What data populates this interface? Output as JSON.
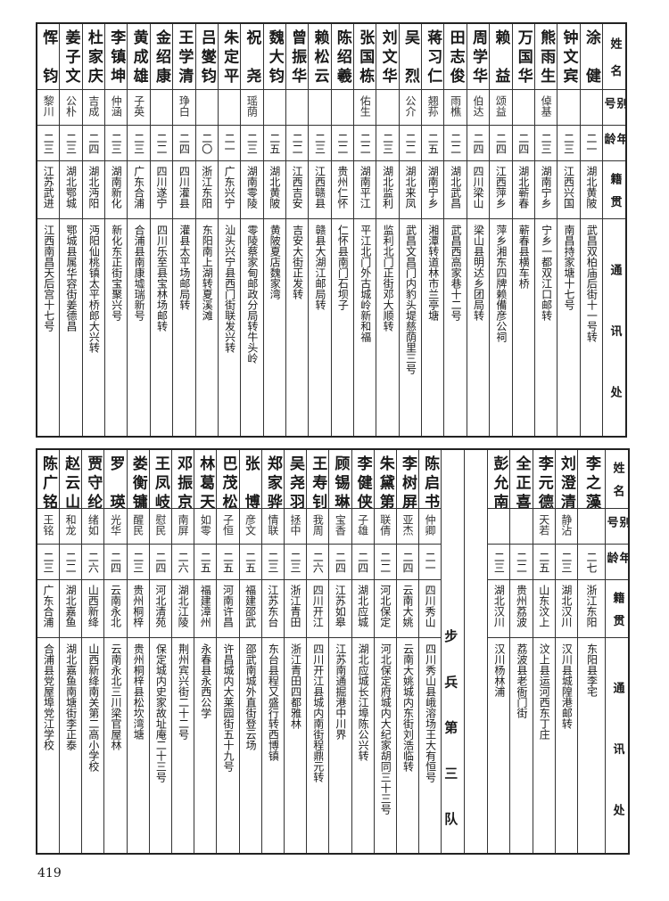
{
  "headers": {
    "name": "姓名",
    "alias": "别号",
    "age": "年龄",
    "native": "籍贯",
    "address": "通讯处"
  },
  "top_table": {
    "people": [
      {
        "name": "涂健",
        "alias": "",
        "age": "二一",
        "native": "湖北黄陂",
        "address": "武昌双柏庙后街十一号转"
      },
      {
        "name": "钟文宾",
        "alias": "",
        "age": "二三",
        "native": "江西兴国",
        "address": "南昌持家塘十七号"
      },
      {
        "name": "熊雨生",
        "alias": "倬基",
        "age": "二三",
        "native": "湖南宁乡",
        "address": "宁乡一都双江口邮转"
      },
      {
        "name": "万国华",
        "alias": "",
        "age": "二四",
        "native": "湖北蕲春",
        "address": "蕲春县横车桥"
      },
      {
        "name": "赖益",
        "alias": "颂益",
        "age": "二四",
        "native": "江西萍乡",
        "address": "萍乡湘东四牌赖備彦公祠"
      },
      {
        "name": "周学华",
        "alias": "伯达",
        "age": "二四",
        "native": "四川梁山",
        "address": "梁山县明达乡团局转"
      },
      {
        "name": "田志俊",
        "alias": "雨樵",
        "age": "二二",
        "native": "湖北武昌",
        "address": "武昌西高家巷十二号"
      },
      {
        "name": "蒋习仁",
        "alias": "翘荪",
        "age": "二五",
        "native": "湖南宁乡",
        "address": "湘潭转道林市兰亭塘"
      },
      {
        "name": "吴烈",
        "alias": "公介",
        "age": "二二",
        "native": "湖北来凤",
        "address": "武昌文昌门内豹头堤慈荫里三号"
      },
      {
        "name": "刘文华",
        "alias": "",
        "age": "二三",
        "native": "湖北监利",
        "address": "监利北门正街邓大顺转"
      },
      {
        "name": "张国栋",
        "alias": "佑生",
        "age": "二二",
        "native": "湖南平江",
        "address": "平江北门外古城岭新和福"
      },
      {
        "name": "陈绍羲",
        "alias": "",
        "age": "二二",
        "native": "贵州仁怀",
        "address": "仁怀县南门石坝子"
      },
      {
        "name": "赖松云",
        "alias": "",
        "age": "二三",
        "native": "江西赣县",
        "address": "赣县大湖江邮局转"
      },
      {
        "name": "曾振华",
        "alias": "",
        "age": "二二",
        "native": "江西吉安",
        "address": "吉安大街正发转"
      },
      {
        "name": "魏大钧",
        "alias": "",
        "age": "二五",
        "native": "湖北黄陂",
        "address": "黄陂夏店魏家湾"
      },
      {
        "name": "祝尧",
        "alias": "瑶荫",
        "age": "二三",
        "native": "湖南零陵",
        "address": "零陵蔡家甸邮政分局转牛头岭"
      },
      {
        "name": "朱定平",
        "alias": "",
        "age": "二一",
        "native": "广东兴宁",
        "address": "汕头兴宁县西门街联发兴转"
      },
      {
        "name": "吕燮钧",
        "alias": "",
        "age": "二〇",
        "native": "浙江东阳",
        "address": "东阳南上湖转夏溪滩"
      },
      {
        "name": "王学清",
        "alias": "琤白",
        "age": "二四",
        "native": "四川灌县",
        "address": "灌县太平场邮局转"
      },
      {
        "name": "金绍康",
        "alias": "",
        "age": "二二",
        "native": "四川遂宁",
        "address": "四川乐至县宝林场邮转"
      },
      {
        "name": "黄成雄",
        "alias": "子英",
        "age": "二三",
        "native": "广东合浦",
        "address": "合浦县南康墟瑞新号"
      },
      {
        "name": "李镇坤",
        "alias": "仲涵",
        "age": "二三",
        "native": "湖南新化",
        "address": "新化东正街宝聚兴号"
      },
      {
        "name": "杜家庆",
        "alias": "吉成",
        "age": "二四",
        "native": "湖北沔阳",
        "address": "沔阳仙桃镇太平桥郎大兴转"
      },
      {
        "name": "姜子文",
        "alias": "公朴",
        "age": "二三",
        "native": "湖北鄂城",
        "address": "鄂城县属华容街姜德昌"
      },
      {
        "name": "恽钧",
        "alias": "黎川",
        "age": "二三",
        "native": "江苏武进",
        "address": "江西南昌天后宫十七号"
      }
    ]
  },
  "bottom_table": {
    "people_right": [
      {
        "name": "李之藻",
        "alias": "",
        "age": "二七",
        "native": "浙江东阳",
        "address": "东阳县李宅"
      },
      {
        "name": "刘澄清",
        "alias": "静沾",
        "age": "二三",
        "native": "湖北汉川",
        "address": "汉川县城隍港邮转"
      },
      {
        "name": "李元德",
        "alias": "天若",
        "age": "二五",
        "native": "山东汶上",
        "address": "汶上县运河西东丁庄"
      },
      {
        "name": "全正喜",
        "alias": "",
        "age": "二二",
        "native": "贵州荔波",
        "address": "荔波县老衙门街"
      },
      {
        "name": "彭允南",
        "alias": "",
        "age": "二三",
        "native": "湖北汉川",
        "address": "汉川杨林浦"
      }
    ],
    "section_label": "步兵第三队",
    "people_left": [
      {
        "name": "陈启书",
        "alias": "仲卿",
        "age": "二一",
        "native": "四川秀山",
        "address": "四川秀山县峨溶场王大有恒号"
      },
      {
        "name": "李树屏",
        "alias": "亚杰",
        "age": "二四",
        "native": "云南大姚",
        "address": "云南大姚城内东街刘浩临转"
      },
      {
        "name": "朱黛第",
        "alias": "联倩",
        "age": "二二",
        "native": "河北保定",
        "address": "河北保定府城内大纪家胡同三十三号"
      },
      {
        "name": "李健侠",
        "alias": "子雄",
        "age": "二四",
        "native": "湖北应城",
        "address": "湖北应城长江埠陈公兴转"
      },
      {
        "name": "顾锡琳",
        "alias": "宝香",
        "age": "二四",
        "native": "江苏如皋",
        "address": "江苏南通掘港中川界"
      },
      {
        "name": "王寿钊",
        "alias": "我周",
        "age": "二六",
        "native": "四川开江",
        "address": "四川开江县城内南街程鼎元转"
      },
      {
        "name": "吴尧羽",
        "alias": "拯中",
        "age": "二三",
        "native": "浙江青田",
        "address": "浙江青田四都雅林"
      },
      {
        "name": "郑家骅",
        "alias": "情联",
        "age": "二三",
        "native": "江苏东台",
        "address": "东台县程又盛行转西博镇"
      },
      {
        "name": "张博",
        "alias": "彦文",
        "age": "二五",
        "native": "福建邵武",
        "address": "邵武南城外直街登云场"
      },
      {
        "name": "巴茂松",
        "alias": "子恒",
        "age": "二五",
        "native": "河南许昌",
        "address": "许昌城内大莱园街五十九号"
      },
      {
        "name": "林葛天",
        "alias": "如零",
        "age": "二五",
        "native": "福建漳州",
        "address": "永春县永西公学"
      },
      {
        "name": "邓振京",
        "alias": "南屏",
        "age": "二六",
        "native": "湖北江陵",
        "address": "荆州宾兴街二十二号"
      },
      {
        "name": "王凤岐",
        "alias": "慰民",
        "age": "二四",
        "native": "河北清苑",
        "address": "保定城内史家故址庵二十三号"
      },
      {
        "name": "娄衡镛",
        "alias": "醒民",
        "age": "二三",
        "native": "贵州桐梓",
        "address": "贵州桐梓县松坎湾塘"
      },
      {
        "name": "罗瑛",
        "alias": "光华",
        "age": "二四",
        "native": "云南永北",
        "address": "云南永北三川梁官屋林"
      },
      {
        "name": "贾守纶",
        "alias": "绪如",
        "age": "二六",
        "native": "山西新绛",
        "address": "山西新绛南关第二高小学校"
      },
      {
        "name": "赵云山",
        "alias": "和龙",
        "age": "二二",
        "native": "湖北嘉鱼",
        "address": "湖北嘉鱼南塘街李正泰"
      },
      {
        "name": "陈广铭",
        "alias": "王铭",
        "age": "二三",
        "native": "广东合浦",
        "address": "合浦县党屋埠党江学校"
      }
    ]
  },
  "page_number": "419"
}
